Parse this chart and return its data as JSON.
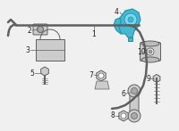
{
  "bg_color": "#f0f0f0",
  "line_color": "#606060",
  "highlight_color": "#45b8d0",
  "highlight_edge": "#2090b0",
  "part_color": "#cccccc",
  "part_edge": "#606060",
  "label_color": "#333333",
  "bar_lw": 1.8,
  "part_lw": 0.7
}
